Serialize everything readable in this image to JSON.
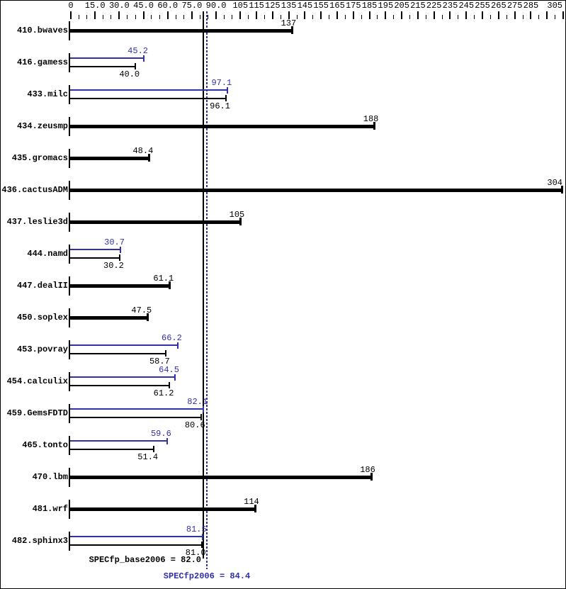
{
  "chart_data": {
    "type": "bar",
    "orientation": "horizontal",
    "title": "",
    "xlabel": "",
    "ylabel": "",
    "axis": {
      "min": 0,
      "max": 305,
      "minor_tick_step": 5,
      "major_ticks": [
        0,
        15,
        30,
        45,
        60,
        75,
        90,
        105,
        115,
        125,
        135,
        145,
        155,
        165,
        175,
        185,
        195,
        205,
        215,
        225,
        235,
        245,
        255,
        265,
        275,
        285,
        295,
        305
      ],
      "tick_labels": [
        {
          "value": 0,
          "label": "0"
        },
        {
          "value": 15,
          "label": "15.0"
        },
        {
          "value": 30,
          "label": "30.0"
        },
        {
          "value": 45,
          "label": "45.0"
        },
        {
          "value": 60,
          "label": "60.0"
        },
        {
          "value": 75,
          "label": "75.0"
        },
        {
          "value": 90,
          "label": "90.0"
        },
        {
          "value": 105,
          "label": "105"
        },
        {
          "value": 115,
          "label": "115"
        },
        {
          "value": 125,
          "label": "125"
        },
        {
          "value": 135,
          "label": "135"
        },
        {
          "value": 145,
          "label": "145"
        },
        {
          "value": 155,
          "label": "155"
        },
        {
          "value": 165,
          "label": "165"
        },
        {
          "value": 175,
          "label": "175"
        },
        {
          "value": 185,
          "label": "185"
        },
        {
          "value": 195,
          "label": "195"
        },
        {
          "value": 205,
          "label": "205"
        },
        {
          "value": 215,
          "label": "215"
        },
        {
          "value": 225,
          "label": "225"
        },
        {
          "value": 235,
          "label": "235"
        },
        {
          "value": 245,
          "label": "245"
        },
        {
          "value": 255,
          "label": "255"
        },
        {
          "value": 265,
          "label": "265"
        },
        {
          "value": 275,
          "label": "275"
        },
        {
          "value": 285,
          "label": "285"
        },
        {
          "value": 305,
          "label": "305"
        }
      ]
    },
    "colors": {
      "base": "#000000",
      "peak": "#3030a8"
    },
    "rows": [
      {
        "name": "410.bwaves",
        "base": 137,
        "base_label": "137",
        "peak": null,
        "peak_label": null
      },
      {
        "name": "416.gamess",
        "base": 40.0,
        "base_label": "40.0",
        "peak": 45.2,
        "peak_label": "45.2"
      },
      {
        "name": "433.milc",
        "base": 96.1,
        "base_label": "96.1",
        "peak": 97.1,
        "peak_label": "97.1"
      },
      {
        "name": "434.zeusmp",
        "base": 188,
        "base_label": "188",
        "peak": null,
        "peak_label": null
      },
      {
        "name": "435.gromacs",
        "base": 48.4,
        "base_label": "48.4",
        "peak": null,
        "peak_label": null
      },
      {
        "name": "436.cactusADM",
        "base": 304,
        "base_label": "304",
        "peak": null,
        "peak_label": null
      },
      {
        "name": "437.leslie3d",
        "base": 105,
        "base_label": "105",
        "peak": null,
        "peak_label": null
      },
      {
        "name": "444.namd",
        "base": 30.2,
        "base_label": "30.2",
        "peak": 30.7,
        "peak_label": "30.7"
      },
      {
        "name": "447.dealII",
        "base": 61.1,
        "base_label": "61.1",
        "peak": null,
        "peak_label": null
      },
      {
        "name": "450.soplex",
        "base": 47.5,
        "base_label": "47.5",
        "peak": null,
        "peak_label": null
      },
      {
        "name": "453.povray",
        "base": 58.7,
        "base_label": "58.7",
        "peak": 66.2,
        "peak_label": "66.2"
      },
      {
        "name": "454.calculix",
        "base": 61.2,
        "base_label": "61.2",
        "peak": 64.5,
        "peak_label": "64.5"
      },
      {
        "name": "459.GemsFDTD",
        "base": 80.6,
        "base_label": "80.6",
        "peak": 82.1,
        "peak_label": "82.1"
      },
      {
        "name": "465.tonto",
        "base": 51.4,
        "base_label": "51.4",
        "peak": 59.6,
        "peak_label": "59.6"
      },
      {
        "name": "470.lbm",
        "base": 186,
        "base_label": "186",
        "peak": null,
        "peak_label": null
      },
      {
        "name": "481.wrf",
        "base": 114,
        "base_label": "114",
        "peak": null,
        "peak_label": null
      },
      {
        "name": "482.sphinx3",
        "base": 81.0,
        "base_label": "81.0",
        "peak": 81.5,
        "peak_label": "81.5"
      }
    ],
    "reference_lines": [
      {
        "name": "base-mean",
        "label": "SPECfp_base2006 = 82.0",
        "value": 82.0,
        "style": "solid",
        "color": "#000000"
      },
      {
        "name": "peak-mean",
        "label": "SPECfp2006 = 84.4",
        "value": 84.4,
        "style": "dotted",
        "color": "#3030a8"
      }
    ],
    "legend_position": "none",
    "grid": false
  }
}
